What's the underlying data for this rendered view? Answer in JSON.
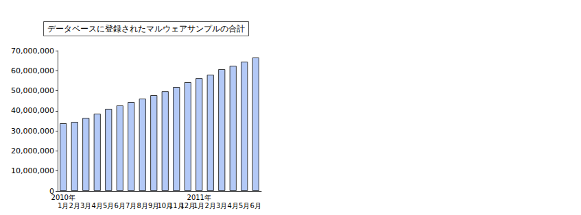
{
  "chart_data": {
    "type": "bar",
    "title": "データベースに登録されたマルウェアサンプルの合計",
    "categories": [
      "2010年\n1月",
      "2月",
      "3月",
      "4月",
      "5月",
      "6月",
      "7月",
      "8月",
      "9月",
      "10月",
      "11月",
      "12月",
      "2011年\n1月",
      "2月",
      "3月",
      "4月",
      "5月",
      "6月"
    ],
    "values": [
      33800000,
      34500000,
      36500000,
      38600000,
      41000000,
      42700000,
      44400000,
      46100000,
      47800000,
      49800000,
      51900000,
      54300000,
      56300000,
      58000000,
      60800000,
      62500000,
      64500000,
      66600000
    ],
    "color": "#b3c9f7",
    "ylim": [
      0,
      70000000
    ],
    "yticks": [
      0,
      {
        "value": 10000000,
        "label": "10,000,000"
      },
      {
        "value": 20000000,
        "label": "20,000,000"
      },
      {
        "value": 30000000,
        "label": "30,000,000"
      },
      {
        "value": 40000000,
        "label": "40,000,000"
      },
      {
        "value": 50000000,
        "label": "50,000,000"
      },
      {
        "value": 60000000,
        "label": "60,000,000"
      },
      {
        "value": 70000000,
        "label": "70,000,000"
      }
    ],
    "grid": false
  }
}
